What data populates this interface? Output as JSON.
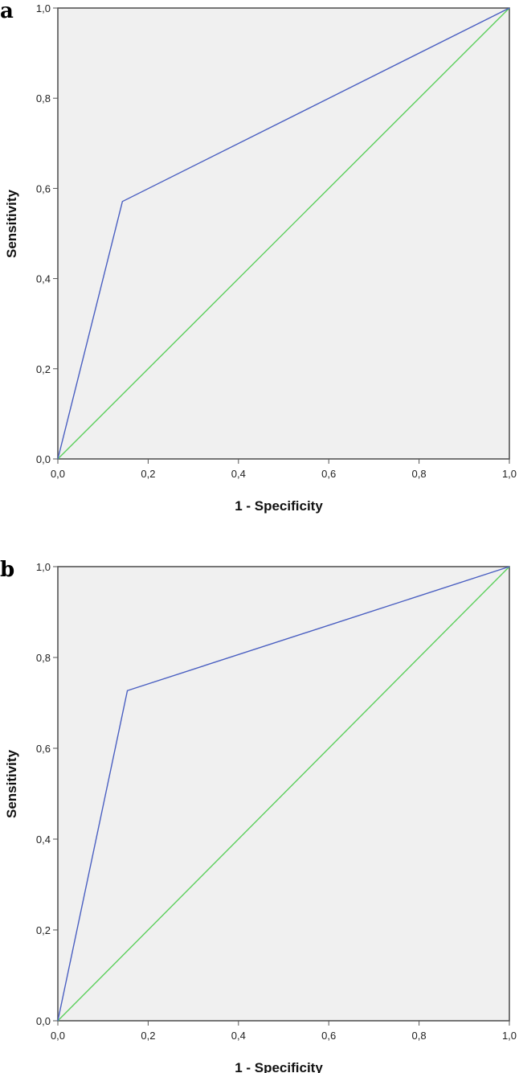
{
  "chart_data": [
    {
      "panel_label": "a",
      "type": "line",
      "xlabel": "1 - Specificity",
      "ylabel": "Sensitivity",
      "xlim": [
        0,
        1
      ],
      "ylim": [
        0,
        1
      ],
      "x_ticks": [
        "0,0",
        "0,2",
        "0,4",
        "0,6",
        "0,8",
        "1,0"
      ],
      "y_ticks": [
        "0,0",
        "0,2",
        "0,4",
        "0,6",
        "0,8",
        "1,0"
      ],
      "grid": false,
      "series": [
        {
          "color": "#4a5fc1",
          "x": [
            0,
            0.143,
            1
          ],
          "y": [
            0,
            0.571,
            1
          ]
        },
        {
          "color": "#5ccf5c",
          "x": [
            0,
            1
          ],
          "y": [
            0,
            1
          ]
        }
      ]
    },
    {
      "panel_label": "b",
      "type": "line",
      "xlabel": "1 - Specificity",
      "ylabel": "Sensitivity",
      "xlim": [
        0,
        1
      ],
      "ylim": [
        0,
        1
      ],
      "x_ticks": [
        "0,0",
        "0,2",
        "0,4",
        "0,6",
        "0,8",
        "1,0"
      ],
      "y_ticks": [
        "0,0",
        "0,2",
        "0,4",
        "0,6",
        "0,8",
        "1,0"
      ],
      "grid": false,
      "series": [
        {
          "color": "#4a5fc1",
          "x": [
            0,
            0.154,
            1
          ],
          "y": [
            0,
            0.727,
            1
          ]
        },
        {
          "color": "#5ccf5c",
          "x": [
            0,
            1
          ],
          "y": [
            0,
            1
          ]
        }
      ]
    }
  ]
}
